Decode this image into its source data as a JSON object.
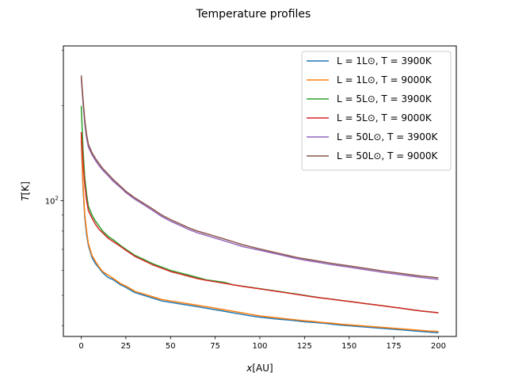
{
  "chart_data": {
    "type": "line",
    "title": "Temperature profiles",
    "xlabel_var": "x",
    "xlabel_unit": "[AU]",
    "ylabel_var": "T",
    "ylabel_unit": "[K]",
    "xlim": [
      -10,
      210
    ],
    "ylim": [
      37,
      310
    ],
    "yscale": "log",
    "xticks": [
      0,
      25,
      50,
      75,
      100,
      125,
      150,
      175,
      200
    ],
    "yticks": [
      {
        "value": 100,
        "base": "10",
        "exp": "2"
      }
    ],
    "grid": false,
    "legend_position": "top-right",
    "series": [
      {
        "name": "L = 1L⊙, T = 3900K",
        "color": "#1f77b4",
        "x": [
          0,
          1,
          2,
          3,
          4,
          6,
          8,
          10,
          12,
          15,
          18,
          22,
          25,
          30,
          35,
          40,
          45,
          50,
          55,
          60,
          65,
          70,
          75,
          80,
          85,
          90,
          95,
          100,
          105,
          110,
          115,
          120,
          125,
          130,
          135,
          140,
          145,
          150,
          155,
          160,
          165,
          170,
          175,
          180,
          185,
          190,
          195,
          200
        ],
        "y": [
          155,
          110,
          88,
          78,
          72,
          66,
          63,
          61,
          59,
          57,
          56,
          54,
          53,
          51,
          50,
          49,
          48,
          47.5,
          47,
          46.5,
          46,
          45.5,
          45,
          44.5,
          44,
          43.5,
          43,
          42.6,
          42.3,
          42,
          41.8,
          41.5,
          41.2,
          41,
          40.8,
          40.5,
          40.2,
          40,
          39.8,
          39.6,
          39.4,
          39.2,
          39,
          38.8,
          38.6,
          38.4,
          38.2,
          38
        ]
      },
      {
        "name": "L = 1L⊙, T = 9000K",
        "color": "#ff7f0e",
        "x": [
          0,
          1,
          2,
          3,
          4,
          6,
          8,
          10,
          12,
          15,
          18,
          22,
          25,
          30,
          35,
          40,
          45,
          50,
          55,
          60,
          65,
          70,
          75,
          80,
          85,
          90,
          95,
          100,
          105,
          110,
          115,
          120,
          125,
          130,
          135,
          140,
          145,
          150,
          155,
          160,
          165,
          170,
          175,
          180,
          185,
          190,
          195,
          200
        ],
        "y": [
          160,
          112,
          90,
          80,
          73,
          67,
          64,
          61.5,
          59.5,
          58,
          56.5,
          54.5,
          53.5,
          51.5,
          50.5,
          49.5,
          48.5,
          48,
          47.5,
          47,
          46.5,
          46,
          45.5,
          45,
          44.5,
          44,
          43.5,
          43,
          42.7,
          42.4,
          42.1,
          41.8,
          41.5,
          41.3,
          41,
          40.8,
          40.5,
          40.3,
          40.1,
          39.9,
          39.7,
          39.5,
          39.3,
          39.1,
          38.9,
          38.7,
          38.5,
          38.4
        ]
      },
      {
        "name": "L = 5L⊙, T = 3900K",
        "color": "#2ca02c",
        "x": [
          0,
          1,
          2,
          3,
          4,
          6,
          8,
          10,
          12,
          15,
          18,
          22,
          25,
          30,
          35,
          40,
          45,
          50,
          55,
          60,
          65,
          70,
          75,
          80,
          85,
          90,
          95,
          100,
          105,
          110,
          115,
          120,
          125,
          130,
          135,
          140,
          145,
          150,
          155,
          160,
          165,
          170,
          175,
          180,
          185,
          190,
          195,
          200
        ],
        "y": [
          200,
          145,
          118,
          105,
          96,
          90,
          86,
          83,
          80,
          77,
          75,
          72,
          70,
          67,
          65,
          63,
          61.5,
          60,
          59,
          58,
          57,
          56,
          55.5,
          55,
          54,
          53.5,
          53,
          52.5,
          52,
          51.5,
          51,
          50.5,
          50,
          49.5,
          49,
          48.6,
          48.2,
          47.8,
          47.4,
          47,
          46.6,
          46.2,
          45.8,
          45.4,
          45,
          44.6,
          44.3,
          44
        ]
      },
      {
        "name": "L = 5L⊙, T = 9000K",
        "color": "#d62728",
        "x": [
          0,
          1,
          2,
          3,
          4,
          6,
          8,
          10,
          12,
          15,
          18,
          22,
          25,
          30,
          35,
          40,
          45,
          50,
          55,
          60,
          65,
          70,
          75,
          80,
          85,
          90,
          95,
          100,
          105,
          110,
          115,
          120,
          125,
          130,
          135,
          140,
          145,
          150,
          155,
          160,
          165,
          170,
          175,
          180,
          185,
          190,
          195,
          200
        ],
        "y": [
          165,
          132,
          112,
          100,
          93,
          88,
          84,
          81,
          79,
          76,
          74,
          71.5,
          69.5,
          66.5,
          64.5,
          62.5,
          61,
          59.5,
          58.5,
          57.5,
          56.5,
          55.8,
          55.2,
          54.6,
          54,
          53.4,
          52.9,
          52.4,
          51.9,
          51.4,
          50.9,
          50.4,
          49.9,
          49.4,
          49,
          48.6,
          48.2,
          47.8,
          47.4,
          47,
          46.6,
          46.2,
          45.8,
          45.4,
          45,
          44.6,
          44.3,
          44
        ]
      },
      {
        "name": "L = 50L⊙, T = 3900K",
        "color": "#9467bd",
        "x": [
          0,
          1,
          2,
          3,
          4,
          6,
          8,
          10,
          12,
          15,
          18,
          22,
          25,
          30,
          35,
          40,
          45,
          50,
          55,
          60,
          65,
          70,
          75,
          80,
          85,
          90,
          95,
          100,
          105,
          110,
          115,
          120,
          125,
          130,
          135,
          140,
          145,
          150,
          155,
          160,
          165,
          170,
          175,
          180,
          185,
          190,
          195,
          200
        ],
        "y": [
          245,
          205,
          175,
          158,
          148,
          140,
          134,
          129,
          125,
          120,
          115,
          110,
          106,
          101,
          97,
          93,
          89,
          86,
          83.5,
          81,
          79,
          77.5,
          76,
          74.5,
          73,
          71.5,
          70.5,
          69.5,
          68.5,
          67.5,
          66.5,
          65.5,
          64.7,
          64,
          63.3,
          62.6,
          62,
          61.4,
          60.8,
          60.2,
          59.6,
          59,
          58.5,
          58,
          57.5,
          57,
          56.6,
          56.2
        ]
      },
      {
        "name": "L = 50L⊙, T = 9000K",
        "color": "#8c564b",
        "x": [
          0,
          1,
          2,
          3,
          4,
          6,
          8,
          10,
          12,
          15,
          18,
          22,
          25,
          30,
          35,
          40,
          45,
          50,
          55,
          60,
          65,
          70,
          75,
          80,
          85,
          90,
          95,
          100,
          105,
          110,
          115,
          120,
          125,
          130,
          135,
          140,
          145,
          150,
          155,
          160,
          165,
          170,
          175,
          180,
          185,
          190,
          195,
          200
        ],
        "y": [
          250,
          210,
          180,
          162,
          151,
          142,
          136,
          131,
          126.5,
          121.5,
          116.5,
          111,
          107,
          102,
          98,
          94,
          90,
          87,
          84.5,
          82,
          80,
          78.5,
          77,
          75.5,
          74,
          72.5,
          71.3,
          70.2,
          69.1,
          68.1,
          67.1,
          66.1,
          65.3,
          64.6,
          63.9,
          63.2,
          62.6,
          62,
          61.4,
          60.8,
          60.2,
          59.6,
          59.1,
          58.6,
          58.1,
          57.6,
          57.2,
          56.8
        ]
      }
    ]
  }
}
